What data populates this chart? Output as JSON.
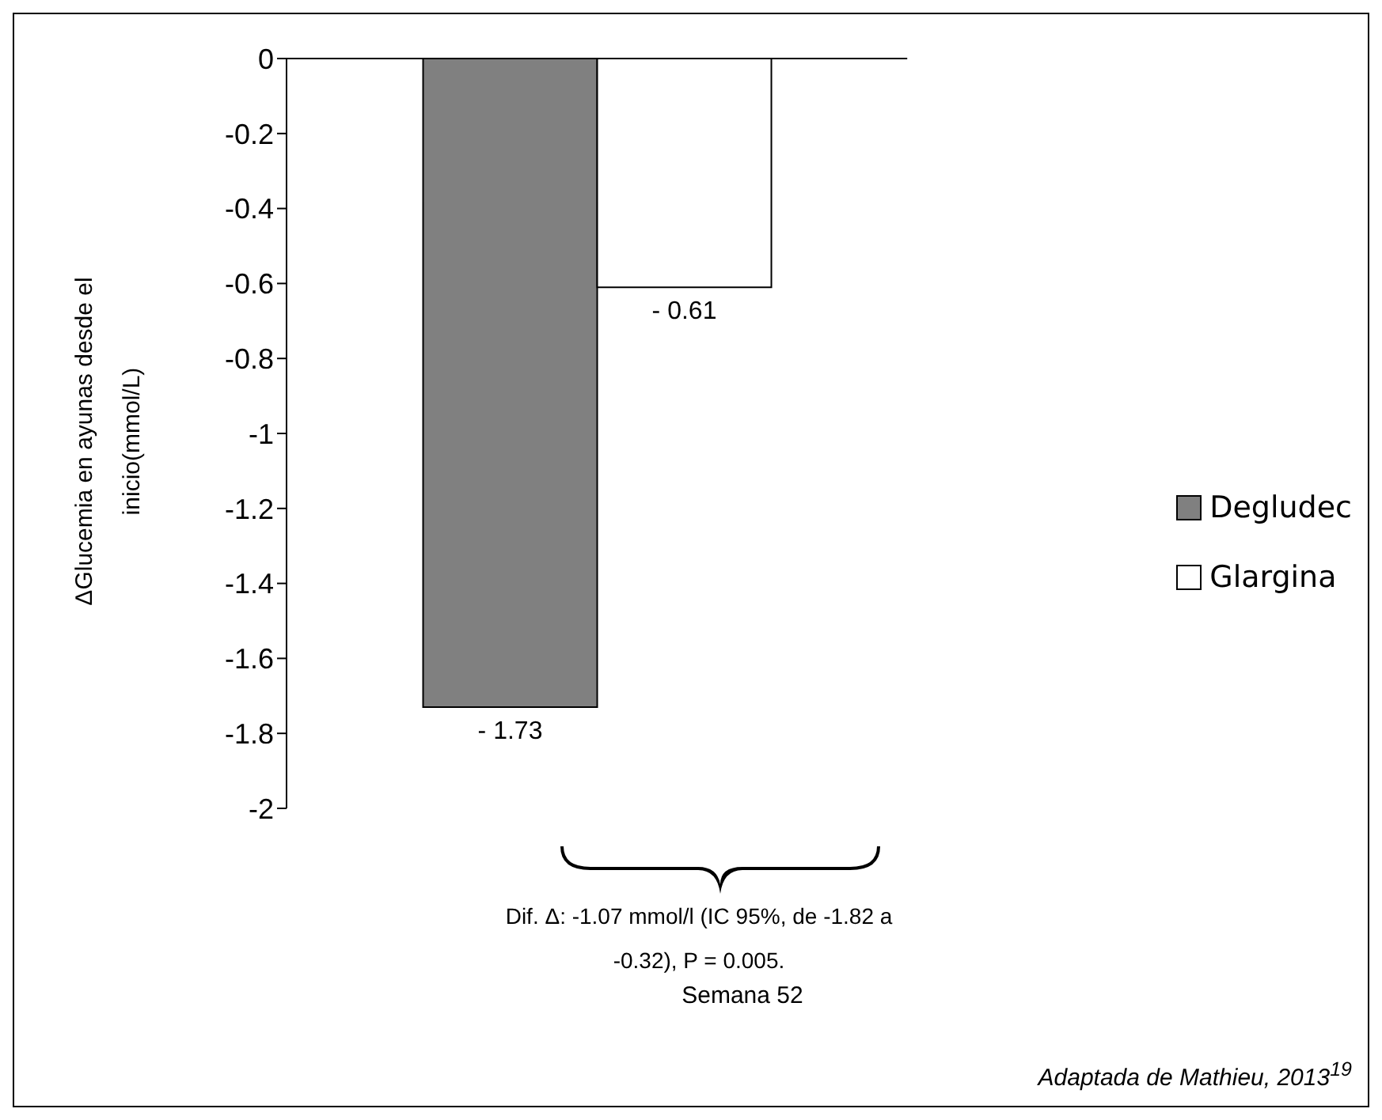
{
  "chart_data": {
    "type": "bar",
    "categories": [
      null
    ],
    "ylabel": "ΔGlucemia en ayunas desde el inicio(mmol/L)",
    "ylim": [
      -2,
      0
    ],
    "yticks": [
      -2,
      -1.8,
      -1.6,
      -1.4,
      -1.2,
      -1,
      -0.8,
      -0.6,
      -0.4,
      -0.2,
      0
    ],
    "grid": false,
    "legend": "right",
    "series": [
      {
        "name": "Degludec",
        "color": "#808080",
        "values": [
          -1.73
        ],
        "value_labels": [
          "- 1.73"
        ]
      },
      {
        "name": "Glargina",
        "color": "#ffffff",
        "values": [
          -0.61
        ],
        "value_labels": [
          "- 0.61"
        ]
      }
    ],
    "annotations": [
      "Dif. Δ: -1.07 mmol/l (IC 95%, de  -1.82 a -0.32), P = 0.005.",
      "Semana 52",
      "Adaptada de Mathieu, 2013$^{19}$"
    ]
  }
}
